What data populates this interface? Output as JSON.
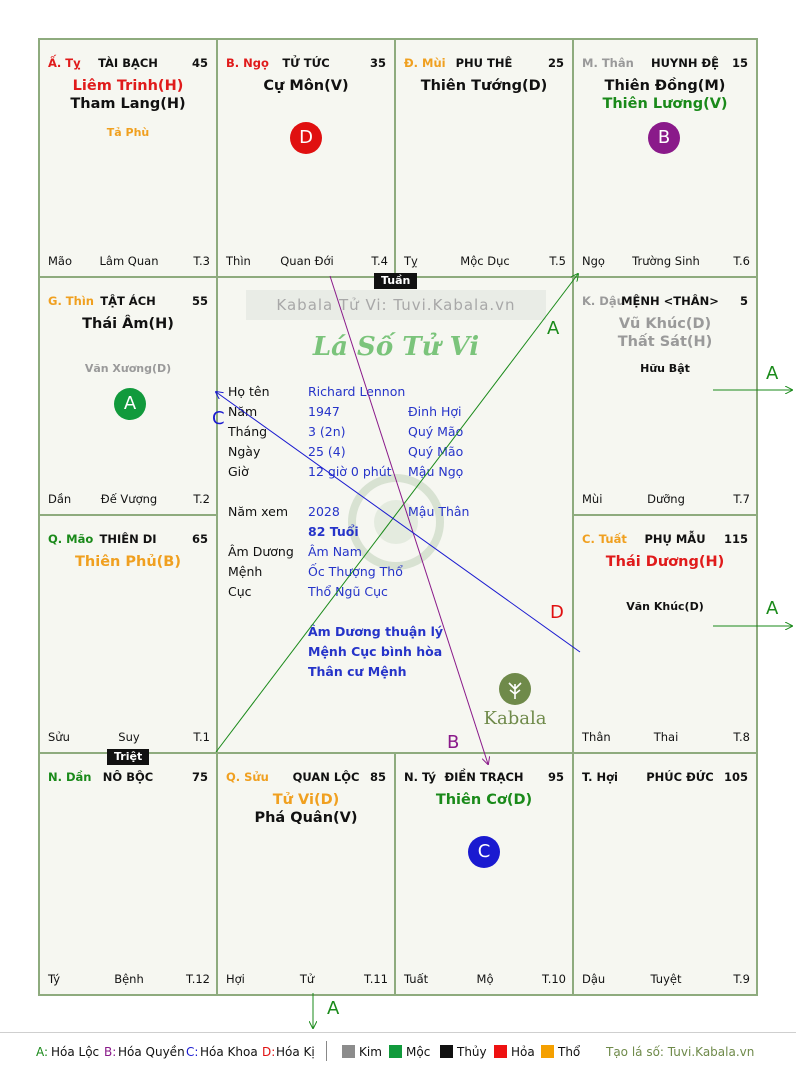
{
  "palaces": {
    "ty_top": {
      "stem": "Ấ. Tỵ",
      "name": "TÀI BẠCH",
      "number": "45",
      "stars_main": [
        "Liêm Trinh(H)",
        "Tham Lang(H)"
      ],
      "stars_minor": [
        "Tả Phù"
      ],
      "footer": [
        "Mão",
        "Lâm Quan",
        "T.3"
      ]
    },
    "ngo": {
      "stem": "B. Ngọ",
      "name": "TỬ TỨC",
      "number": "35",
      "stars_main": [
        "Cự Môn(V)"
      ],
      "circle": "D",
      "footer": [
        "Thìn",
        "Quan Đới",
        "T.4"
      ]
    },
    "mui": {
      "stem": "Đ. Mùi",
      "name": "PHU THÊ",
      "number": "25",
      "stars_main": [
        "Thiên Tướng(D)"
      ],
      "footer": [
        "Tỵ",
        "Mộc Dục",
        "T.5"
      ]
    },
    "than": {
      "stem": "M. Thân",
      "name": "HUYNH ĐỆ",
      "number": "15",
      "stars_main": [
        "Thiên Đồng(M)",
        "Thiên Lương(V)"
      ],
      "circle": "B",
      "footer": [
        "Ngọ",
        "Trường Sinh",
        "T.6"
      ]
    },
    "thin": {
      "stem": "G. Thìn",
      "name": "TẬT ÁCH",
      "number": "55",
      "stars_main": [
        "Thái Âm(H)"
      ],
      "stars_minor": [
        "Văn Xương(D)"
      ],
      "circle": "A",
      "footer": [
        "Dần",
        "Đế Vượng",
        "T.2"
      ]
    },
    "dau": {
      "stem": "K. Dậu",
      "name": "MỆNH <THÂN>",
      "number": "5",
      "stars_main": [
        "Vũ Khúc(D)",
        "Thất Sát(H)"
      ],
      "stars_minor": [
        "Hữu Bật"
      ],
      "footer": [
        "Mùi",
        "Dưỡng",
        "T.7"
      ]
    },
    "mao": {
      "stem": "Q. Mão",
      "name": "THIÊN DI",
      "number": "65",
      "stars_main": [
        "Thiên Phủ(B)"
      ],
      "footer": [
        "Sửu",
        "Suy",
        "T.1"
      ]
    },
    "tuat": {
      "stem": "C. Tuất",
      "name": "PHỤ MẪU",
      "number": "115",
      "stars_main": [
        "Thái Dương(H)"
      ],
      "stars_minor": [
        "Văn Khúc(D)"
      ],
      "footer": [
        "Thân",
        "Thai",
        "T.8"
      ]
    },
    "dan": {
      "stem": "N. Dần",
      "name": "NÔ BỘC",
      "number": "75",
      "footer": [
        "Tý",
        "Bệnh",
        "T.12"
      ]
    },
    "suu": {
      "stem": "Q. Sửu",
      "name": "QUAN LỘC",
      "number": "85",
      "stars_main": [
        "Tử Vi(D)",
        "Phá Quân(V)"
      ],
      "footer": [
        "Hợi",
        "Tử",
        "T.11"
      ]
    },
    "ty_bottom": {
      "stem": "N. Tý",
      "name": "ĐIỀN TRẠCH",
      "number": "95",
      "stars_main": [
        "Thiên Cơ(D)"
      ],
      "circle": "C",
      "footer": [
        "Tuất",
        "Mộ",
        "T.10"
      ]
    },
    "hoi": {
      "stem": "T. Hợi",
      "name": "PHÚC ĐỨC",
      "number": "105",
      "footer": [
        "Dậu",
        "Tuyệt",
        "T.9"
      ]
    }
  },
  "center": {
    "watermark": "Kabala Tử Vi: Tuvi.Kabala.vn",
    "title": "Lá Số Tử Vi",
    "rows": [
      {
        "label": "Họ tên",
        "value": "Richard Lennon",
        "extra": ""
      },
      {
        "label": "Năm",
        "value": "1947",
        "extra": "Đinh Hợi"
      },
      {
        "label": "Tháng",
        "value": "3  (2n)",
        "extra": "Quý Mão"
      },
      {
        "label": "Ngày",
        "value": "25  (4)",
        "extra": "Quý Mão"
      },
      {
        "label": "Giờ",
        "value": "12 giờ 0 phút",
        "extra": "Mậu Ngọ"
      }
    ],
    "nam_xem": {
      "label": "Năm xem",
      "value": "2028",
      "extra": "Mậu Thân"
    },
    "tuoi": "82 Tuổi",
    "rows2": [
      {
        "label": "Âm Dương",
        "value": "Âm Nam"
      },
      {
        "label": "Mệnh",
        "value": "Ốc Thượng Thổ"
      },
      {
        "label": "Cục",
        "value": "Thổ Ngũ Cục"
      }
    ],
    "notes": [
      "Âm Dương thuận lý",
      "Mệnh Cục bình hòa",
      "Thân cư Mệnh"
    ],
    "brand": "Kabala"
  },
  "tags": {
    "tuan": "Tuần",
    "triet": "Triệt"
  },
  "arrows": {
    "A": "A",
    "B": "B",
    "C": "C",
    "D": "D"
  },
  "legend": {
    "items": [
      {
        "key": "A:",
        "text": "Hóa Lộc",
        "color": "#1a8a1a"
      },
      {
        "key": "B:",
        "text": "Hóa Quyền",
        "color": "#8a1a8a"
      },
      {
        "key": "C:",
        "text": "Hóa Khoa",
        "color": "#1a1ad0"
      },
      {
        "key": "D:",
        "text": "Hóa Kị",
        "color": "#e01010"
      }
    ],
    "elements": [
      {
        "name": "Kim",
        "color": "#8c8c8c"
      },
      {
        "name": "Mộc",
        "color": "#119a3c"
      },
      {
        "name": "Thủy",
        "color": "#111111"
      },
      {
        "name": "Hỏa",
        "color": "#ee1111"
      },
      {
        "name": "Thổ",
        "color": "#f5a000"
      }
    ],
    "credit": "Tạo lá số: Tuvi.Kabala.vn"
  },
  "colors": {
    "red": "#e01b1b",
    "green": "#1a8a1a",
    "orange": "#f0a020",
    "gray": "#9a9a9a",
    "blue": "#2634c9",
    "purple": "#8a1a8a",
    "border": "#8eab7e"
  }
}
